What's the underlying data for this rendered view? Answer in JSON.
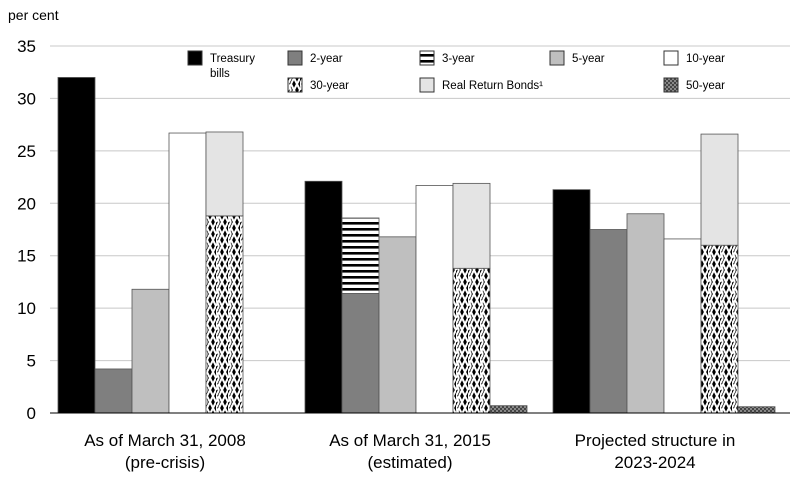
{
  "chart_data": {
    "type": "bar",
    "unit_label": "per cent",
    "ylim": [
      0,
      35
    ],
    "yticks": [
      0,
      5,
      10,
      15,
      20,
      25,
      30,
      35
    ],
    "grid": true,
    "legend_position": "top",
    "categories": [
      [
        "As of March 31, 2008",
        "(pre-crisis)"
      ],
      [
        "As of March 31, 2015",
        "(estimated)"
      ],
      [
        "Projected structure in",
        "2023-2024"
      ]
    ],
    "legend": [
      {
        "key": "tbills",
        "label": [
          "Treasury",
          "bills"
        ],
        "fill": "solid-black"
      },
      {
        "key": "y2",
        "label": [
          "2-year"
        ],
        "fill": "dark-gray"
      },
      {
        "key": "y3",
        "label": [
          "3-year"
        ],
        "fill": "horizontal-stripes"
      },
      {
        "key": "y5",
        "label": [
          "5-year"
        ],
        "fill": "light-gray"
      },
      {
        "key": "y10",
        "label": [
          "10-year"
        ],
        "fill": "white"
      },
      {
        "key": "y30",
        "label": [
          "30-year"
        ],
        "fill": "chevron-pattern"
      },
      {
        "key": "rrb",
        "label": [
          "Real Return Bonds¹"
        ],
        "fill": "very-light-gray"
      },
      {
        "key": "y50",
        "label": [
          "50-year"
        ],
        "fill": "dotted-gray"
      }
    ],
    "bars": [
      [
        {
          "segments": [
            {
              "series": "tbills",
              "value": 32.0
            }
          ]
        },
        {
          "segments": [
            {
              "series": "y2",
              "value": 4.2
            }
          ]
        },
        {
          "segments": [
            {
              "series": "y5",
              "value": 11.8
            }
          ]
        },
        {
          "segments": [
            {
              "series": "y10",
              "value": 26.7
            }
          ]
        },
        {
          "segments": [
            {
              "series": "y30",
              "value": 18.8
            },
            {
              "series": "rrb",
              "value": 8.0
            }
          ]
        }
      ],
      [
        {
          "segments": [
            {
              "series": "tbills",
              "value": 22.1
            }
          ]
        },
        {
          "segments": [
            {
              "series": "y2",
              "value": 11.4
            },
            {
              "series": "y3",
              "value": 7.2
            }
          ]
        },
        {
          "segments": [
            {
              "series": "y5",
              "value": 16.8
            }
          ]
        },
        {
          "segments": [
            {
              "series": "y10",
              "value": 21.7
            }
          ]
        },
        {
          "segments": [
            {
              "series": "y30",
              "value": 13.8
            },
            {
              "series": "rrb",
              "value": 8.1
            }
          ]
        },
        {
          "segments": [
            {
              "series": "y50",
              "value": 0.7
            }
          ]
        }
      ],
      [
        {
          "segments": [
            {
              "series": "tbills",
              "value": 21.3
            }
          ]
        },
        {
          "segments": [
            {
              "series": "y2",
              "value": 17.5
            }
          ]
        },
        {
          "segments": [
            {
              "series": "y5",
              "value": 19.0
            }
          ]
        },
        {
          "segments": [
            {
              "series": "y10",
              "value": 16.6
            }
          ]
        },
        {
          "segments": [
            {
              "series": "y30",
              "value": 16.0
            },
            {
              "series": "rrb",
              "value": 10.6
            }
          ]
        },
        {
          "segments": [
            {
              "series": "y50",
              "value": 0.6
            }
          ]
        }
      ]
    ]
  }
}
